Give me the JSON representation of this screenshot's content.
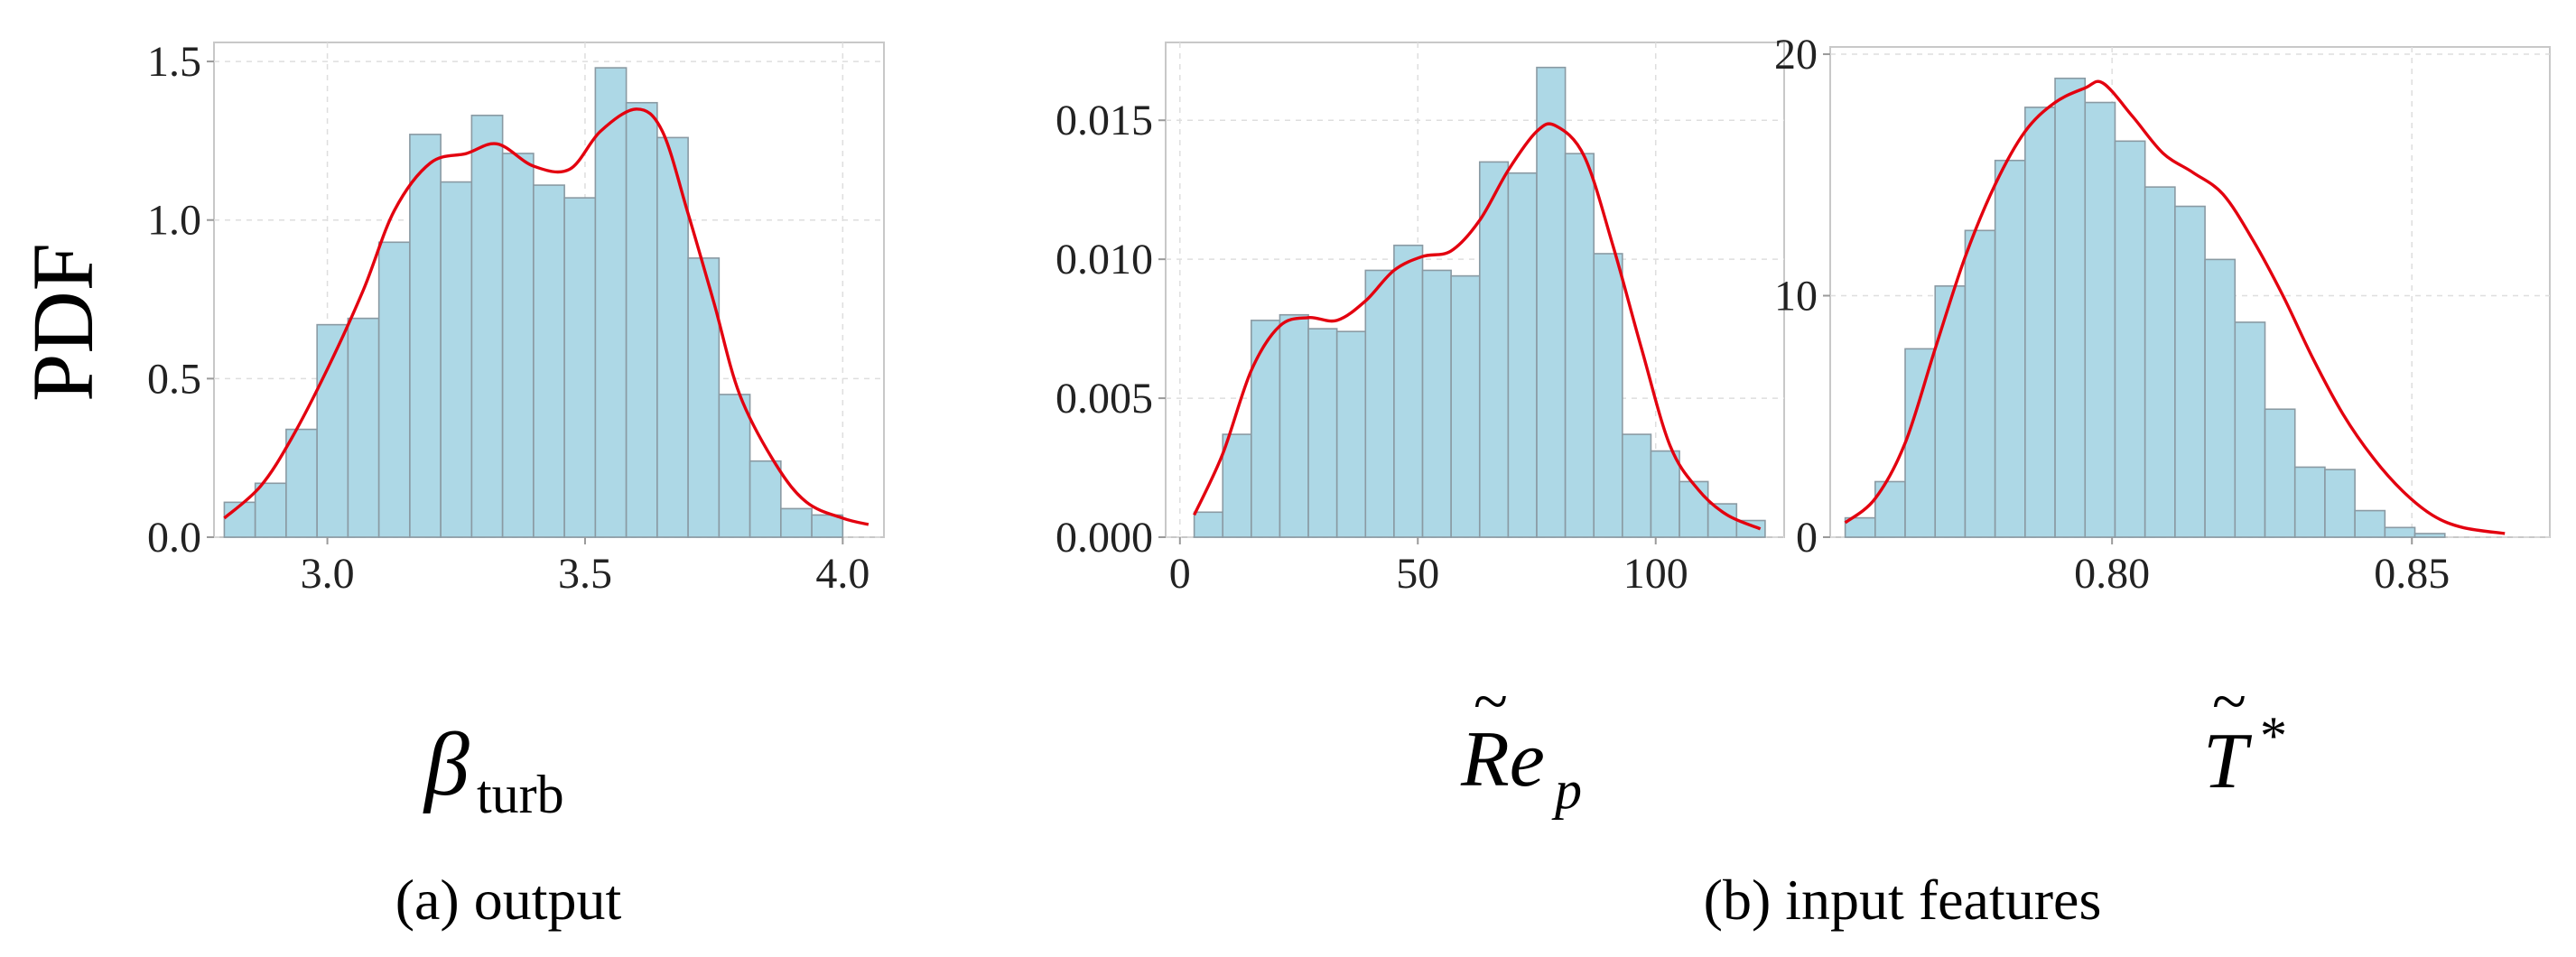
{
  "figure": {
    "ylabel": "PDF",
    "captions": {
      "a": "(a) output",
      "b": "(b) input features"
    },
    "colors": {
      "bar": "#add8e6",
      "kde": "#e3000f"
    }
  },
  "chart_data": [
    {
      "type": "bar",
      "xlabel": "β_turb",
      "ylabel": "PDF",
      "xlim": [
        2.78,
        4.08
      ],
      "ylim": [
        0,
        1.56
      ],
      "xticks": [
        3.0,
        3.5,
        4.0
      ],
      "xtick_labels": [
        "3.0",
        "3.5",
        "4.0"
      ],
      "yticks": [
        0.0,
        0.5,
        1.0,
        1.5
      ],
      "ytick_labels": [
        "0.0",
        "0.5",
        "1.0",
        "1.5"
      ],
      "grid": true,
      "bin_edges": [
        2.8,
        2.86,
        2.92,
        2.98,
        3.04,
        3.1,
        3.16,
        3.22,
        3.28,
        3.34,
        3.4,
        3.46,
        3.52,
        3.58,
        3.64,
        3.7,
        3.76,
        3.82,
        3.88,
        3.94,
        4.0,
        4.06
      ],
      "values": [
        0.11,
        0.17,
        0.34,
        0.67,
        0.69,
        0.93,
        1.27,
        1.12,
        1.33,
        1.21,
        1.11,
        1.07,
        1.48,
        1.37,
        1.26,
        0.88,
        0.45,
        0.24,
        0.09,
        0.07,
        0.0
      ],
      "kde": {
        "x": [
          2.8,
          2.87,
          2.93,
          3.0,
          3.07,
          3.13,
          3.2,
          3.27,
          3.33,
          3.4,
          3.47,
          3.53,
          3.6,
          3.65,
          3.7,
          3.75,
          3.8,
          3.87,
          3.93,
          4.0,
          4.05
        ],
        "y": [
          0.06,
          0.16,
          0.31,
          0.53,
          0.78,
          1.03,
          1.18,
          1.21,
          1.24,
          1.17,
          1.16,
          1.28,
          1.35,
          1.28,
          1.02,
          0.74,
          0.45,
          0.23,
          0.11,
          0.06,
          0.04
        ]
      }
    },
    {
      "type": "bar",
      "xlabel": "R̃e_p",
      "ylabel": "",
      "xlim": [
        -3,
        127
      ],
      "ylim": [
        0,
        0.0178
      ],
      "xticks": [
        0,
        50,
        100
      ],
      "xtick_labels": [
        "0",
        "50",
        "100"
      ],
      "yticks": [
        0.0,
        0.005,
        0.01,
        0.015
      ],
      "ytick_labels": [
        "0.000",
        "0.005",
        "0.010",
        "0.015"
      ],
      "grid": true,
      "bin_edges": [
        3,
        9,
        15,
        21,
        27,
        33,
        39,
        45,
        51,
        57,
        63,
        69,
        75,
        81,
        87,
        93,
        99,
        105,
        111,
        117,
        123
      ],
      "values": [
        0.0009,
        0.0037,
        0.0078,
        0.008,
        0.0075,
        0.0074,
        0.0096,
        0.0105,
        0.0096,
        0.0094,
        0.0135,
        0.0131,
        0.0169,
        0.0138,
        0.0102,
        0.0037,
        0.0031,
        0.002,
        0.0012,
        0.0006
      ],
      "kde": {
        "x": [
          3,
          9,
          15,
          21,
          27,
          33,
          39,
          45,
          51,
          57,
          63,
          69,
          75,
          79,
          85,
          91,
          97,
          103,
          109,
          115,
          122
        ],
        "y": [
          0.0008,
          0.003,
          0.006,
          0.0076,
          0.0079,
          0.0078,
          0.0085,
          0.0096,
          0.0101,
          0.0103,
          0.0114,
          0.0132,
          0.0146,
          0.0148,
          0.0137,
          0.0105,
          0.0068,
          0.0033,
          0.0017,
          0.0008,
          0.0003
        ]
      }
    },
    {
      "type": "bar",
      "xlabel": "T̃*",
      "ylabel": "",
      "xlim": [
        0.753,
        0.873
      ],
      "ylim": [
        0,
        20.3
      ],
      "xticks": [
        0.8,
        0.85
      ],
      "xtick_labels": [
        "0.80",
        "0.85"
      ],
      "yticks": [
        0,
        10,
        20
      ],
      "ytick_labels": [
        "0",
        "10",
        "20"
      ],
      "grid": true,
      "bin_edges": [
        0.7555,
        0.7605,
        0.7655,
        0.7705,
        0.7755,
        0.7805,
        0.7855,
        0.7905,
        0.7955,
        0.8005,
        0.8055,
        0.8105,
        0.8155,
        0.8205,
        0.8255,
        0.8305,
        0.8355,
        0.8405,
        0.8455,
        0.8505,
        0.8555,
        0.8605,
        0.8655
      ],
      "values": [
        0.8,
        2.3,
        7.8,
        10.4,
        12.7,
        15.6,
        17.8,
        19.0,
        18.0,
        16.4,
        14.5,
        13.7,
        11.5,
        8.9,
        5.3,
        2.9,
        2.8,
        1.1,
        0.4,
        0.15,
        0.0,
        0.0
      ],
      "kde": {
        "x": [
          0.7555,
          0.7605,
          0.7655,
          0.7705,
          0.7755,
          0.7805,
          0.7855,
          0.7905,
          0.7955,
          0.7985,
          0.8035,
          0.8085,
          0.8135,
          0.8185,
          0.8235,
          0.8285,
          0.8335,
          0.8385,
          0.8435,
          0.8485,
          0.8535,
          0.8585,
          0.8655
        ],
        "y": [
          0.6,
          1.6,
          3.9,
          7.8,
          11.6,
          14.6,
          16.8,
          18.0,
          18.6,
          18.8,
          17.4,
          15.9,
          15.1,
          14.2,
          12.3,
          10.0,
          7.4,
          5.1,
          3.3,
          1.9,
          0.9,
          0.4,
          0.15
        ]
      }
    }
  ]
}
